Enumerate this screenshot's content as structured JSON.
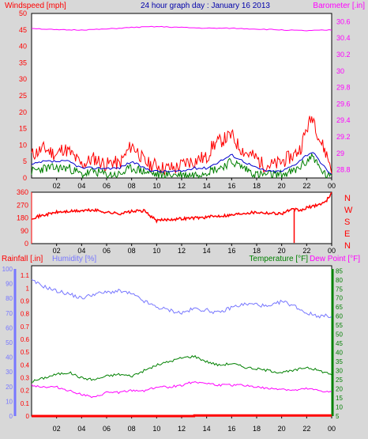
{
  "title": "24 hour graph day : January 16 2013",
  "colors": {
    "wind_speed": "#ff0000",
    "wind_avg": "#0000cc",
    "wind_gust_low": "#008000",
    "barometer": "#ff00ff",
    "direction": "#ff0000",
    "rainfall": "#ff0000",
    "humidity": "#7777ff",
    "temperature": "#008000",
    "dew_point": "#ff00ff",
    "background": "#ffffff",
    "frame": "#d8d8d8",
    "title": "#0000aa"
  },
  "chart_data": [
    {
      "type": "line",
      "panel": "wind_barometer",
      "ylabel": "Windspeed [mph]",
      "y2label": "Barometer [.in]",
      "ylim": [
        0,
        50
      ],
      "yticks": [
        "0",
        "5",
        "10",
        "15",
        "20",
        "25",
        "30",
        "35",
        "40",
        "45",
        "50"
      ],
      "y2lim": [
        28.7,
        30.7
      ],
      "y2ticks": [
        "28.8",
        "29",
        "29.2",
        "29.4",
        "29.6",
        "29.8",
        "30",
        "30.2",
        "30.4",
        "30.6"
      ],
      "xlim": [
        0,
        24
      ],
      "xticks": [
        "02",
        "04",
        "06",
        "08",
        "10",
        "12",
        "14",
        "16",
        "18",
        "20",
        "22",
        "00"
      ],
      "series": [
        {
          "key": "max",
          "x": [
            0,
            0.5,
            1,
            1.5,
            2,
            2.5,
            3,
            3.5,
            4,
            4.5,
            5,
            5.5,
            6,
            6.5,
            7,
            7.5,
            8,
            8.5,
            9,
            9.5,
            10,
            10.5,
            11,
            11.5,
            12,
            12.5,
            13,
            13.5,
            14,
            14.5,
            15,
            15.5,
            16,
            16.5,
            17,
            17.5,
            18,
            18.5,
            19,
            19.5,
            20,
            20.5,
            21,
            21.5,
            22,
            22.5,
            23,
            23.5,
            24
          ],
          "values": [
            7,
            8,
            9,
            8,
            7,
            9,
            8,
            6,
            4,
            5,
            6,
            5,
            4,
            5,
            4,
            7,
            10,
            8,
            5,
            4,
            4,
            3,
            3,
            3,
            4,
            5,
            5,
            6,
            6,
            10,
            11,
            12,
            13,
            10,
            8,
            7,
            6,
            4,
            4,
            4,
            5,
            6,
            7,
            9,
            15,
            19,
            12,
            8,
            3
          ]
        },
        {
          "key": "avg",
          "x": [
            0,
            1,
            2,
            3,
            4,
            5,
            6,
            7,
            8,
            9,
            10,
            11,
            12,
            13,
            14,
            15,
            16,
            17,
            18,
            19,
            20,
            21,
            22,
            22.5,
            23,
            23.5,
            24
          ],
          "values": [
            4,
            5,
            5,
            5,
            3,
            3,
            3,
            3,
            5,
            3,
            2,
            2,
            2,
            3,
            3,
            5,
            7,
            5,
            3,
            2,
            2,
            4,
            7,
            8,
            5,
            3,
            1
          ]
        },
        {
          "key": "low",
          "x": [
            0,
            1,
            2,
            3,
            4,
            5,
            6,
            7,
            8,
            9,
            10,
            11,
            12,
            13,
            14,
            15,
            16,
            17,
            18,
            19,
            20,
            21,
            22,
            22.5,
            23,
            23.5,
            24
          ],
          "values": [
            2,
            3,
            3,
            3,
            1,
            2,
            1,
            1,
            3,
            2,
            1,
            1,
            1,
            1,
            2,
            3,
            5,
            3,
            1,
            1,
            1,
            2,
            5,
            7,
            3,
            1,
            0
          ]
        },
        {
          "key": "barometer",
          "x": [
            0,
            2,
            4,
            6,
            8,
            10,
            12,
            14,
            16,
            18,
            20,
            22,
            24
          ],
          "values": [
            30.52,
            30.5,
            30.5,
            30.51,
            30.53,
            30.54,
            30.53,
            30.52,
            30.52,
            30.51,
            30.5,
            30.49,
            30.5
          ]
        }
      ]
    },
    {
      "type": "line",
      "panel": "wind_direction",
      "ylim": [
        0,
        360
      ],
      "yticks": [
        "0",
        "90",
        "180",
        "270",
        "360"
      ],
      "y2ticks": [
        "N",
        "W",
        "S",
        "E",
        "N"
      ],
      "xlim": [
        0,
        24
      ],
      "xticks": [
        "02",
        "04",
        "06",
        "08",
        "10",
        "12",
        "14",
        "16",
        "18",
        "20",
        "22",
        "00"
      ],
      "series": [
        {
          "key": "direction",
          "x": [
            0,
            1,
            2,
            3,
            4,
            5,
            6,
            7,
            8,
            9,
            10,
            11,
            12,
            13,
            14,
            15,
            16,
            17,
            18,
            19,
            20,
            20.5,
            21,
            21.5,
            22,
            23,
            23.5,
            24
          ],
          "values": [
            180,
            200,
            220,
            225,
            230,
            235,
            220,
            210,
            225,
            230,
            160,
            170,
            175,
            180,
            185,
            195,
            200,
            215,
            220,
            215,
            210,
            230,
            240,
            230,
            250,
            275,
            290,
            360
          ]
        }
      ]
    },
    {
      "type": "line",
      "panel": "rain_humidity_temperature",
      "y1label": "Rainfall [.in]",
      "y1lim": [
        0,
        1.15
      ],
      "y1ticks": [
        "0",
        "0.1",
        "0.2",
        "0.3",
        "0.4",
        "0.5",
        "0.6",
        "0.7",
        "0.8",
        "0.9",
        "1",
        "1.1"
      ],
      "y0label": "Humidity [%]",
      "y0lim": [
        0,
        100
      ],
      "y0ticks": [
        "0",
        "10",
        "20",
        "30",
        "40",
        "50",
        "60",
        "70",
        "80",
        "90",
        "100"
      ],
      "y2label": "Temperature [°F]",
      "y3label": "Dew Point [°F]",
      "y2lim": [
        5,
        86
      ],
      "y2ticks": [
        "5",
        "10",
        "15",
        "20",
        "25",
        "30",
        "35",
        "40",
        "45",
        "50",
        "55",
        "60",
        "65",
        "70",
        "75",
        "80",
        "85"
      ],
      "xlim": [
        0,
        24
      ],
      "xticks": [
        "02",
        "04",
        "06",
        "08",
        "10",
        "12",
        "14",
        "16",
        "18",
        "20",
        "22",
        "00"
      ],
      "series": [
        {
          "key": "humidity",
          "x": [
            0,
            1,
            2,
            3,
            4,
            5,
            6,
            7,
            8,
            9,
            10,
            11,
            12,
            13,
            14,
            15,
            16,
            17,
            18,
            19,
            20,
            21,
            22,
            23,
            24
          ],
          "values": [
            92,
            88,
            85,
            83,
            80,
            83,
            84,
            85,
            83,
            78,
            74,
            72,
            70,
            73,
            72,
            70,
            74,
            76,
            76,
            74,
            78,
            75,
            70,
            68,
            68
          ]
        },
        {
          "key": "temperature",
          "x": [
            0,
            1,
            2,
            3,
            4,
            5,
            6,
            7,
            8,
            9,
            10,
            11,
            12,
            13,
            14,
            15,
            16,
            17,
            18,
            19,
            20,
            21,
            22,
            23,
            24
          ],
          "values": [
            24,
            26,
            28,
            29,
            26,
            25,
            27,
            28,
            27,
            30,
            33,
            35,
            37,
            38,
            35,
            33,
            34,
            32,
            31,
            30,
            29,
            30,
            32,
            30,
            28
          ]
        },
        {
          "key": "dew_point",
          "x": [
            0,
            1,
            2,
            3,
            4,
            5,
            6,
            7,
            8,
            9,
            10,
            11,
            12,
            13,
            14,
            15,
            16,
            17,
            18,
            19,
            20,
            21,
            22,
            23,
            24
          ],
          "values": [
            22,
            21,
            21,
            19,
            17,
            15,
            18,
            18,
            19,
            19,
            21,
            21,
            22,
            24,
            23,
            22,
            22,
            22,
            21,
            20,
            20,
            19,
            20,
            19,
            18
          ]
        },
        {
          "key": "rainfall",
          "x": [
            0,
            13,
            13.01,
            24
          ],
          "values": [
            0,
            0,
            0.005,
            0.005
          ]
        }
      ]
    }
  ]
}
